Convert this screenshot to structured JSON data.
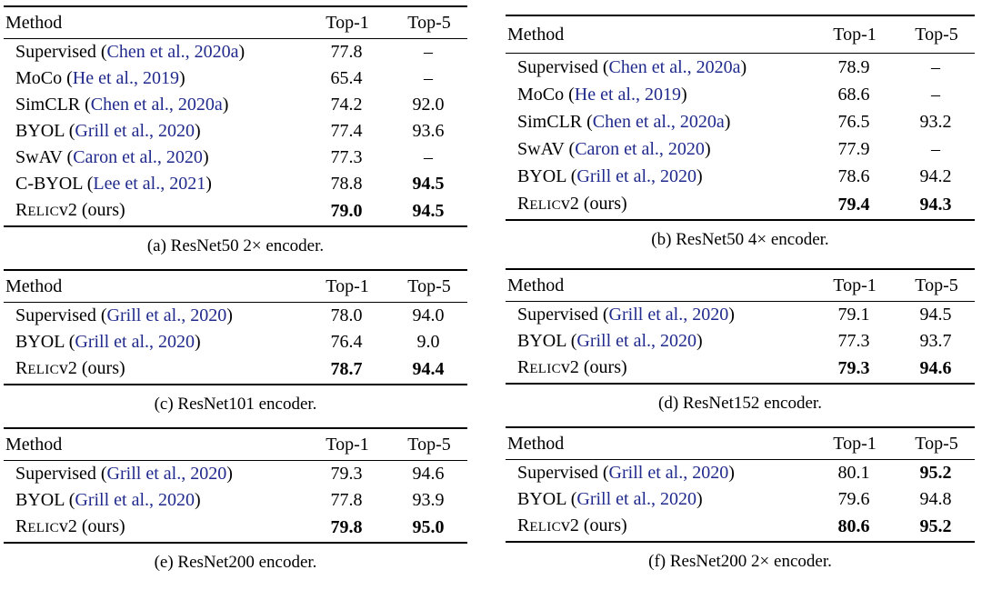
{
  "page": {
    "background": "#ffffff",
    "text_color": "#000000",
    "citation_color": "#202a8c"
  },
  "columns": [
    {
      "side": "left",
      "tables": [
        {
          "id": "a",
          "caption": "(a) ResNet50 2× encoder.",
          "headers": [
            "Method",
            "Top-1",
            "Top-5"
          ],
          "rows": [
            {
              "method": "Supervised",
              "cite": "Chen et al., 2020a",
              "top1": "77.8",
              "bold1": false,
              "top5": "–",
              "bold5": false
            },
            {
              "method": "MoCo",
              "cite": "He et al., 2019",
              "top1": "65.4",
              "bold1": false,
              "top5": "–",
              "bold5": false
            },
            {
              "method": "SimCLR",
              "cite": "Chen et al., 2020a",
              "top1": "74.2",
              "bold1": false,
              "top5": "92.0",
              "bold5": false
            },
            {
              "method": "BYOL",
              "cite": "Grill et al., 2020",
              "top1": "77.4",
              "bold1": false,
              "top5": "93.6",
              "bold5": false
            },
            {
              "method": "SwAV",
              "cite": "Caron et al., 2020",
              "top1": "77.3",
              "bold1": false,
              "top5": "–",
              "bold5": false
            },
            {
              "method": "C-BYOL",
              "cite": "Lee et al., 2021",
              "top1": "78.8",
              "bold1": false,
              "top5": "94.5",
              "bold5": true
            },
            {
              "method": "RELICv2",
              "smallcaps": "ELIC",
              "suffix": " (ours)",
              "top1": "79.0",
              "bold1": true,
              "top5": "94.5",
              "bold5": true
            }
          ]
        },
        {
          "id": "c",
          "caption": "(c) ResNet101 encoder.",
          "headers": [
            "Method",
            "Top-1",
            "Top-5"
          ],
          "rows": [
            {
              "method": "Supervised",
              "cite": "Grill et al., 2020",
              "top1": "78.0",
              "bold1": false,
              "top5": "94.0",
              "bold5": false
            },
            {
              "method": "BYOL",
              "cite": "Grill et al., 2020",
              "top1": "76.4",
              "bold1": false,
              "top5": "9.0",
              "bold5": false
            },
            {
              "method": "RELICv2",
              "smallcaps": "ELIC",
              "suffix": " (ours)",
              "top1": "78.7",
              "bold1": true,
              "top5": "94.4",
              "bold5": true
            }
          ]
        },
        {
          "id": "e",
          "caption": "(e) ResNet200 encoder.",
          "headers": [
            "Method",
            "Top-1",
            "Top-5"
          ],
          "rows": [
            {
              "method": "Supervised",
              "cite": "Grill et al., 2020",
              "top1": "79.3",
              "bold1": false,
              "top5": "94.6",
              "bold5": false
            },
            {
              "method": "BYOL",
              "cite": "Grill et al., 2020",
              "top1": "77.8",
              "bold1": false,
              "top5": "93.9",
              "bold5": false
            },
            {
              "method": "RELICv2",
              "smallcaps": "ELIC",
              "suffix": " (ours)",
              "top1": "79.8",
              "bold1": true,
              "top5": "95.0",
              "bold5": true
            }
          ]
        }
      ]
    },
    {
      "side": "right",
      "tables": [
        {
          "id": "b",
          "caption": "(b) ResNet50 4× encoder.",
          "headers": [
            "Method",
            "Top-1",
            "Top-5"
          ],
          "rows": [
            {
              "method": "Supervised",
              "cite": "Chen et al., 2020a",
              "top1": "78.9",
              "bold1": false,
              "top5": "–",
              "bold5": false
            },
            {
              "method": "MoCo",
              "cite": "He et al., 2019",
              "top1": "68.6",
              "bold1": false,
              "top5": "–",
              "bold5": false
            },
            {
              "method": "SimCLR",
              "cite": "Chen et al., 2020a",
              "top1": "76.5",
              "bold1": false,
              "top5": "93.2",
              "bold5": false
            },
            {
              "method": "SwAV",
              "cite": "Caron et al., 2020",
              "top1": "77.9",
              "bold1": false,
              "top5": "–",
              "bold5": false
            },
            {
              "method": "BYOL",
              "cite": "Grill et al., 2020",
              "top1": "78.6",
              "bold1": false,
              "top5": "94.2",
              "bold5": false
            },
            {
              "method": "RELICv2",
              "smallcaps": "ELIC",
              "suffix": " (ours)",
              "top1": "79.4",
              "bold1": true,
              "top5": "94.3",
              "bold5": true
            }
          ]
        },
        {
          "id": "d",
          "caption": "(d) ResNet152 encoder.",
          "headers": [
            "Method",
            "Top-1",
            "Top-5"
          ],
          "rows": [
            {
              "method": "Supervised",
              "cite": "Grill et al., 2020",
              "top1": "79.1",
              "bold1": false,
              "top5": "94.5",
              "bold5": false
            },
            {
              "method": "BYOL",
              "cite": "Grill et al., 2020",
              "top1": "77.3",
              "bold1": false,
              "top5": "93.7",
              "bold5": false
            },
            {
              "method": "RELICv2",
              "smallcaps": "ELIC",
              "suffix": " (ours)",
              "top1": "79.3",
              "bold1": true,
              "top5": "94.6",
              "bold5": true
            }
          ]
        },
        {
          "id": "f",
          "caption": "(f) ResNet200 2× encoder.",
          "headers": [
            "Method",
            "Top-1",
            "Top-5"
          ],
          "rows": [
            {
              "method": "Supervised",
              "cite": "Grill et al., 2020",
              "top1": "80.1",
              "bold1": false,
              "top5": "95.2",
              "bold5": true
            },
            {
              "method": "BYOL",
              "cite": "Grill et al., 2020",
              "top1": "79.6",
              "bold1": false,
              "top5": "94.8",
              "bold5": false
            },
            {
              "method": "RELICv2",
              "smallcaps": "ELIC",
              "suffix": " (ours)",
              "top1": "80.6",
              "bold1": true,
              "top5": "95.2",
              "bold5": true
            }
          ]
        }
      ]
    }
  ]
}
